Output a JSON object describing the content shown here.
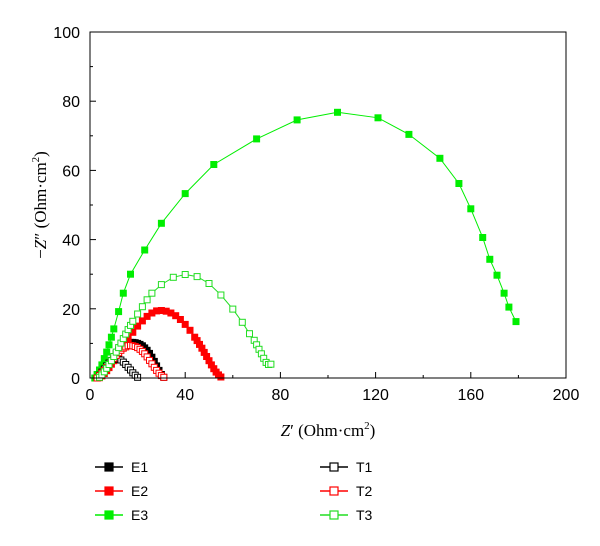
{
  "chart_data": {
    "type": "scatter",
    "title": "",
    "xlabel_var": "Z",
    "xlabel_prime": "′",
    "xlabel_unit": " (Ohm·cm",
    "xlabel_sup": "2",
    "xlabel_close": ")",
    "ylabel_minus": "−",
    "ylabel_var": "Z",
    "ylabel_prime": "″",
    "ylabel_unit": " (Ohm·cm",
    "ylabel_sup": "2",
    "ylabel_close": ")",
    "xlim": [
      0,
      200
    ],
    "ylim": [
      0,
      100
    ],
    "xticks": [
      "0",
      "40",
      "80",
      "120",
      "160",
      "200"
    ],
    "xtick_values": [
      0,
      40,
      80,
      120,
      160,
      200
    ],
    "yticks": [
      "0",
      "20",
      "40",
      "60",
      "80",
      "100"
    ],
    "ytick_values": [
      0,
      20,
      40,
      60,
      80,
      100
    ],
    "grid": false,
    "legend_position": "bottom",
    "series": [
      {
        "name": "E1",
        "color": "#000000",
        "marker": "filled-square",
        "x": [
          3,
          4,
          5,
          6,
          7,
          8,
          9,
          10,
          11,
          12,
          13,
          14,
          15,
          16,
          17,
          18,
          19,
          20,
          21,
          22,
          23,
          24,
          25,
          26,
          27,
          28,
          29,
          30,
          31
        ],
        "y": [
          0,
          0.7,
          1.5,
          2.3,
          3.2,
          4.1,
          5.1,
          6.1,
          7.1,
          8.0,
          8.8,
          9.4,
          9.9,
          10.2,
          10.3,
          10.3,
          10.2,
          10.0,
          9.7,
          9.3,
          8.7,
          8.0,
          7.1,
          6.0,
          4.8,
          3.5,
          2.2,
          1.0,
          0.2
        ]
      },
      {
        "name": "E2",
        "color": "#ff0000",
        "marker": "filled-square",
        "x": [
          4,
          5,
          6,
          7,
          8,
          9,
          10,
          11,
          12,
          14,
          16,
          18,
          20,
          22,
          24,
          26,
          28,
          30,
          32,
          34,
          36,
          38,
          40,
          42,
          44,
          45,
          46,
          47,
          48,
          49,
          50,
          51,
          52,
          53,
          54,
          55
        ],
        "y": [
          0.1,
          0.6,
          1.3,
          2.1,
          3.0,
          4.0,
          5.0,
          6.1,
          7.2,
          9.3,
          11.3,
          13.2,
          15.0,
          16.5,
          17.8,
          18.8,
          19.4,
          19.5,
          19.3,
          18.8,
          18.0,
          16.9,
          15.5,
          13.8,
          11.8,
          10.8,
          9.7,
          8.6,
          7.4,
          6.2,
          5.0,
          3.8,
          2.7,
          1.7,
          0.9,
          0.3
        ]
      },
      {
        "name": "E3",
        "color": "#00ee00",
        "marker": "filled-square",
        "x": [
          2,
          3,
          4,
          5,
          6,
          7,
          8,
          9,
          10,
          12,
          14,
          17,
          23,
          30,
          40,
          52,
          70,
          87,
          104,
          121,
          134,
          147,
          155,
          160,
          165,
          168,
          171,
          174,
          176,
          179
        ],
        "y": [
          0,
          1.0,
          2.3,
          3.8,
          5.6,
          7.5,
          9.6,
          11.8,
          14.2,
          19.2,
          24.5,
          30.0,
          37.0,
          44.7,
          53.3,
          61.7,
          69.1,
          74.6,
          76.8,
          75.2,
          70.4,
          63.5,
          56.2,
          48.9,
          40.6,
          34.3,
          29.7,
          24.5,
          20.5,
          16.3
        ]
      },
      {
        "name": "T1",
        "color": "#000000",
        "marker": "open-square",
        "x": [
          3,
          4,
          5,
          6,
          7,
          8,
          9,
          10,
          11,
          12,
          13,
          14,
          15,
          16,
          17,
          18,
          19,
          20
        ],
        "y": [
          0,
          0.8,
          1.7,
          2.6,
          3.5,
          4.3,
          5.0,
          5.4,
          5.6,
          5.5,
          5.2,
          4.6,
          3.9,
          3.1,
          2.3,
          1.5,
          0.8,
          0.2
        ]
      },
      {
        "name": "T2",
        "color": "#ff0000",
        "marker": "open-square",
        "x": [
          3,
          4,
          5,
          6,
          7,
          8,
          9,
          10,
          11,
          12,
          13,
          14,
          15,
          16,
          17,
          18,
          19,
          20,
          21,
          22,
          23,
          24,
          25,
          26,
          27,
          28,
          29,
          30,
          31
        ],
        "y": [
          0,
          0.7,
          1.4,
          2.2,
          3.0,
          3.9,
          4.8,
          5.7,
          6.5,
          7.3,
          8.0,
          8.6,
          9.0,
          9.3,
          9.4,
          9.3,
          9.1,
          8.8,
          8.3,
          7.7,
          7.0,
          6.1,
          5.1,
          4.1,
          3.1,
          2.2,
          1.4,
          0.7,
          0.2
        ]
      },
      {
        "name": "T3",
        "color": "#22dd22",
        "marker": "open-square",
        "x": [
          4,
          5,
          6,
          7,
          8,
          9,
          10,
          11,
          12,
          13,
          14,
          15,
          16,
          17,
          18,
          20,
          22,
          24,
          26,
          30,
          35,
          40,
          45,
          50,
          55,
          60,
          64,
          67,
          69,
          70,
          71,
          72,
          73,
          74,
          75,
          76
        ],
        "y": [
          0.2,
          0.9,
          1.8,
          2.8,
          3.9,
          5.0,
          6.2,
          7.5,
          8.8,
          10.1,
          11.4,
          12.7,
          14.0,
          15.2,
          16.4,
          18.5,
          20.6,
          22.6,
          24.5,
          27.0,
          29.1,
          29.9,
          29.3,
          27.3,
          24.0,
          19.9,
          16.1,
          12.8,
          10.9,
          9.6,
          8.3,
          7.0,
          5.7,
          4.5,
          3.9,
          4.0
        ]
      }
    ]
  }
}
